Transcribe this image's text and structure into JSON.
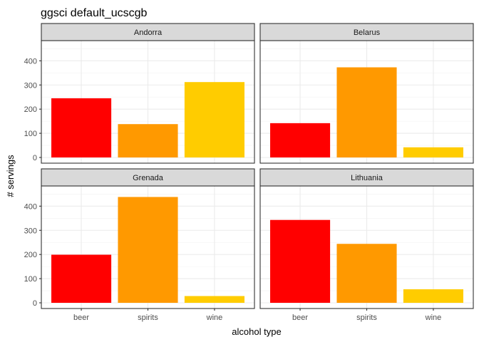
{
  "chart_data": {
    "type": "bar",
    "title": "ggsci default_ucscgb",
    "xlabel": "alcohol type",
    "ylabel": "# servings",
    "ylim": [
      0,
      460
    ],
    "yticks": [
      "0",
      "100",
      "200",
      "300",
      "400"
    ],
    "categories": [
      "beer",
      "spirits",
      "wine"
    ],
    "bar_colors": [
      "#FF0000",
      "#FF9900",
      "#FFCC00"
    ],
    "grid": true,
    "legend": "none",
    "facets": [
      {
        "label": "Andorra",
        "values": [
          245,
          138,
          312
        ]
      },
      {
        "label": "Belarus",
        "values": [
          142,
          373,
          42
        ]
      },
      {
        "label": "Grenada",
        "values": [
          199,
          438,
          28
        ]
      },
      {
        "label": "Lithuania",
        "values": [
          343,
          244,
          56
        ]
      }
    ]
  }
}
